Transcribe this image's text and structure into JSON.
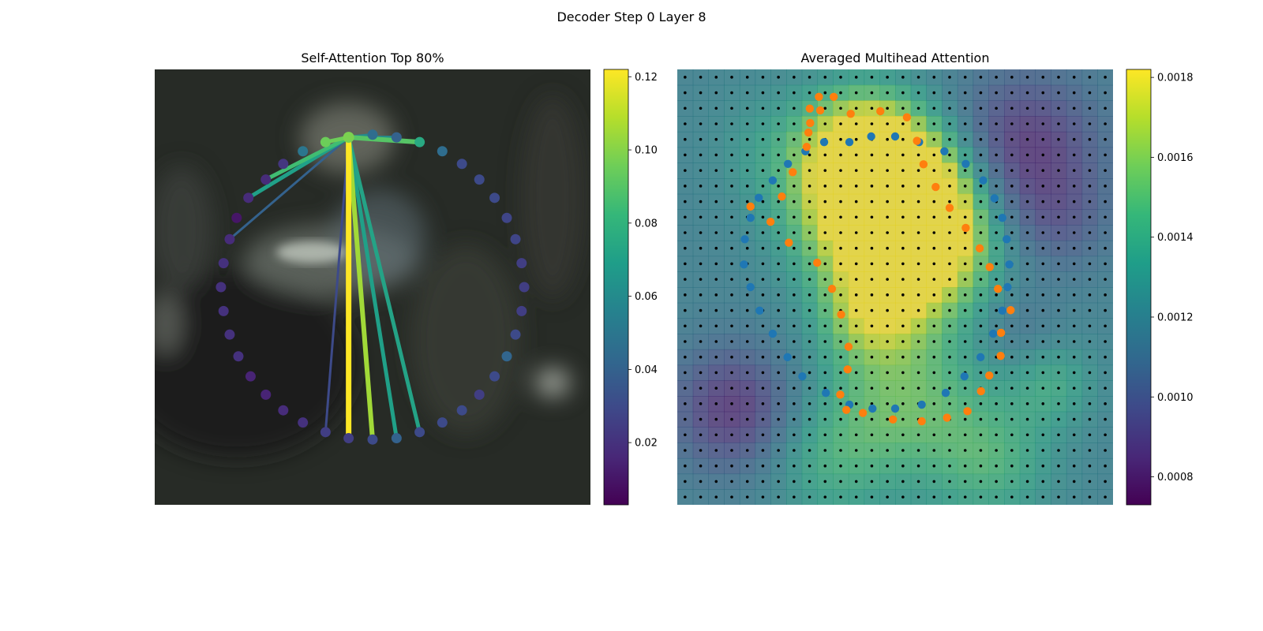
{
  "figure": {
    "suptitle": "Decoder Step 0 Layer 8"
  },
  "colors": {
    "viridis_stops": [
      "#440154",
      "#482878",
      "#3e4989",
      "#31688e",
      "#26828e",
      "#1f9e89",
      "#35b779",
      "#6ece58",
      "#b5de2b",
      "#fde725"
    ],
    "encoder_points": "#1f77b4",
    "decoder_points": "#ff7f0e",
    "grid_points": "#000000"
  },
  "chart_data": [
    {
      "panel": "left",
      "type": "scatter",
      "title": "Self-Attention Top 80%",
      "description_of_background": "blurred grayscale-green photo of a hand",
      "colorbar": {
        "min": 0.003,
        "max": 0.122,
        "ticks": [
          0.02,
          0.04,
          0.06,
          0.08,
          0.1,
          0.12
        ],
        "tick_labels": [
          "0.02",
          "0.04",
          "0.06",
          "0.08",
          "0.10",
          "0.12"
        ]
      },
      "query_index": 0,
      "points": [
        {
          "x": 0.445,
          "y": 0.156,
          "v": 0.098
        },
        {
          "x": 0.5,
          "y": 0.15,
          "v": 0.045
        },
        {
          "x": 0.555,
          "y": 0.156,
          "v": 0.04
        },
        {
          "x": 0.608,
          "y": 0.167,
          "v": 0.075
        },
        {
          "x": 0.66,
          "y": 0.188,
          "v": 0.045
        },
        {
          "x": 0.705,
          "y": 0.217,
          "v": 0.03
        },
        {
          "x": 0.745,
          "y": 0.253,
          "v": 0.03
        },
        {
          "x": 0.78,
          "y": 0.295,
          "v": 0.03
        },
        {
          "x": 0.808,
          "y": 0.341,
          "v": 0.028
        },
        {
          "x": 0.828,
          "y": 0.39,
          "v": 0.028
        },
        {
          "x": 0.842,
          "y": 0.445,
          "v": 0.025
        },
        {
          "x": 0.848,
          "y": 0.5,
          "v": 0.025
        },
        {
          "x": 0.842,
          "y": 0.555,
          "v": 0.025
        },
        {
          "x": 0.828,
          "y": 0.609,
          "v": 0.03
        },
        {
          "x": 0.808,
          "y": 0.659,
          "v": 0.042
        },
        {
          "x": 0.78,
          "y": 0.705,
          "v": 0.03
        },
        {
          "x": 0.745,
          "y": 0.747,
          "v": 0.025
        },
        {
          "x": 0.705,
          "y": 0.783,
          "v": 0.03
        },
        {
          "x": 0.66,
          "y": 0.811,
          "v": 0.03
        },
        {
          "x": 0.608,
          "y": 0.833,
          "v": 0.03
        },
        {
          "x": 0.555,
          "y": 0.847,
          "v": 0.04
        },
        {
          "x": 0.5,
          "y": 0.85,
          "v": 0.03
        },
        {
          "x": 0.445,
          "y": 0.847,
          "v": 0.025
        },
        {
          "x": 0.392,
          "y": 0.833,
          "v": 0.025
        },
        {
          "x": 0.34,
          "y": 0.811,
          "v": 0.02
        },
        {
          "x": 0.295,
          "y": 0.783,
          "v": 0.018
        },
        {
          "x": 0.255,
          "y": 0.747,
          "v": 0.015
        },
        {
          "x": 0.22,
          "y": 0.705,
          "v": 0.015
        },
        {
          "x": 0.192,
          "y": 0.659,
          "v": 0.02
        },
        {
          "x": 0.172,
          "y": 0.609,
          "v": 0.02
        },
        {
          "x": 0.158,
          "y": 0.555,
          "v": 0.02
        },
        {
          "x": 0.152,
          "y": 0.5,
          "v": 0.02
        },
        {
          "x": 0.158,
          "y": 0.445,
          "v": 0.02
        },
        {
          "x": 0.172,
          "y": 0.39,
          "v": 0.018
        },
        {
          "x": 0.188,
          "y": 0.341,
          "v": 0.01
        },
        {
          "x": 0.215,
          "y": 0.295,
          "v": 0.018
        },
        {
          "x": 0.255,
          "y": 0.253,
          "v": 0.018
        },
        {
          "x": 0.295,
          "y": 0.217,
          "v": 0.022
        },
        {
          "x": 0.34,
          "y": 0.188,
          "v": 0.05
        },
        {
          "x": 0.392,
          "y": 0.167,
          "v": 0.095
        }
      ],
      "edges": [
        {
          "to": 22,
          "v": 0.122,
          "w": 7
        },
        {
          "to": 21,
          "v": 0.105,
          "w": 6
        },
        {
          "to": 20,
          "v": 0.07,
          "w": 5
        },
        {
          "to": 19,
          "v": 0.072,
          "w": 5
        },
        {
          "to": 3,
          "v": 0.09,
          "w": 6
        },
        {
          "to": 1,
          "v": 0.06,
          "w": 4
        },
        {
          "to": 2,
          "v": 0.06,
          "w": 4
        },
        {
          "to": 39,
          "v": 0.095,
          "w": 5
        },
        {
          "to": 35,
          "v": 0.07,
          "w": 5
        },
        {
          "to": 36,
          "v": 0.085,
          "w": 5
        },
        {
          "to": 33,
          "v": 0.04,
          "w": 3
        },
        {
          "to": 23,
          "v": 0.03,
          "w": 3
        }
      ]
    },
    {
      "panel": "right",
      "type": "heatmap",
      "title": "Averaged Multihead Attention",
      "colorbar": {
        "min": 0.00073,
        "max": 0.00182,
        "ticks": [
          0.0008,
          0.001,
          0.0012,
          0.0014,
          0.0016,
          0.0018
        ],
        "tick_labels": [
          "0.0008",
          "0.0010",
          "0.0012",
          "0.0014",
          "0.0016",
          "0.0018"
        ]
      },
      "grid_size": 28,
      "hotspots": [
        {
          "x": 0.45,
          "y": 0.32,
          "r": 0.12,
          "a": 0.00085
        },
        {
          "x": 0.43,
          "y": 0.18,
          "r": 0.09,
          "a": 0.00065
        },
        {
          "x": 0.55,
          "y": 0.3,
          "r": 0.1,
          "a": 0.0006
        },
        {
          "x": 0.58,
          "y": 0.43,
          "r": 0.1,
          "a": 0.0005
        },
        {
          "x": 0.45,
          "y": 0.55,
          "r": 0.08,
          "a": 0.00045
        },
        {
          "x": 0.52,
          "y": 0.75,
          "r": 0.13,
          "a": 0.00035
        },
        {
          "x": 0.72,
          "y": 0.9,
          "r": 0.1,
          "a": 0.00025
        },
        {
          "x": 0.35,
          "y": 0.9,
          "r": 0.1,
          "a": 0.0002
        },
        {
          "x": 0.86,
          "y": 0.72,
          "r": 0.07,
          "a": 0.0002
        },
        {
          "x": 0.22,
          "y": 0.18,
          "r": 0.1,
          "a": 0.00012
        },
        {
          "x": 0.8,
          "y": 0.18,
          "r": 0.12,
          "a": -0.00035
        },
        {
          "x": 0.13,
          "y": 0.78,
          "r": 0.1,
          "a": -0.00035
        },
        {
          "x": 0.88,
          "y": 0.35,
          "r": 0.08,
          "a": -0.00015
        },
        {
          "x": 0.78,
          "y": 0.6,
          "r": 0.07,
          "a": -0.0001
        }
      ],
      "base_value": 0.00118,
      "encoder_points": [
        {
          "x": 0.395,
          "y": 0.167
        },
        {
          "x": 0.445,
          "y": 0.154
        },
        {
          "x": 0.5,
          "y": 0.154
        },
        {
          "x": 0.555,
          "y": 0.167
        },
        {
          "x": 0.613,
          "y": 0.188
        },
        {
          "x": 0.662,
          "y": 0.217
        },
        {
          "x": 0.702,
          "y": 0.255
        },
        {
          "x": 0.728,
          "y": 0.296
        },
        {
          "x": 0.746,
          "y": 0.341
        },
        {
          "x": 0.756,
          "y": 0.39
        },
        {
          "x": 0.762,
          "y": 0.448
        },
        {
          "x": 0.758,
          "y": 0.5
        },
        {
          "x": 0.746,
          "y": 0.554
        },
        {
          "x": 0.725,
          "y": 0.607
        },
        {
          "x": 0.696,
          "y": 0.661
        },
        {
          "x": 0.659,
          "y": 0.705
        },
        {
          "x": 0.616,
          "y": 0.743
        },
        {
          "x": 0.561,
          "y": 0.77
        },
        {
          "x": 0.5,
          "y": 0.779
        },
        {
          "x": 0.448,
          "y": 0.779
        },
        {
          "x": 0.395,
          "y": 0.77
        },
        {
          "x": 0.341,
          "y": 0.743
        },
        {
          "x": 0.287,
          "y": 0.705
        },
        {
          "x": 0.253,
          "y": 0.661
        },
        {
          "x": 0.219,
          "y": 0.607
        },
        {
          "x": 0.189,
          "y": 0.554
        },
        {
          "x": 0.168,
          "y": 0.5
        },
        {
          "x": 0.153,
          "y": 0.448
        },
        {
          "x": 0.155,
          "y": 0.39
        },
        {
          "x": 0.168,
          "y": 0.341
        },
        {
          "x": 0.187,
          "y": 0.295
        },
        {
          "x": 0.219,
          "y": 0.255
        },
        {
          "x": 0.254,
          "y": 0.217
        },
        {
          "x": 0.294,
          "y": 0.188
        },
        {
          "x": 0.337,
          "y": 0.167
        }
      ],
      "decoder_points": [
        {
          "x": 0.398,
          "y": 0.102
        },
        {
          "x": 0.466,
          "y": 0.096
        },
        {
          "x": 0.527,
          "y": 0.11
        },
        {
          "x": 0.55,
          "y": 0.164
        },
        {
          "x": 0.565,
          "y": 0.218
        },
        {
          "x": 0.593,
          "y": 0.27
        },
        {
          "x": 0.625,
          "y": 0.318
        },
        {
          "x": 0.662,
          "y": 0.364
        },
        {
          "x": 0.694,
          "y": 0.411
        },
        {
          "x": 0.717,
          "y": 0.454
        },
        {
          "x": 0.736,
          "y": 0.504
        },
        {
          "x": 0.765,
          "y": 0.553
        },
        {
          "x": 0.743,
          "y": 0.605
        },
        {
          "x": 0.742,
          "y": 0.658
        },
        {
          "x": 0.716,
          "y": 0.703
        },
        {
          "x": 0.697,
          "y": 0.739
        },
        {
          "x": 0.666,
          "y": 0.785
        },
        {
          "x": 0.619,
          "y": 0.8
        },
        {
          "x": 0.561,
          "y": 0.808
        },
        {
          "x": 0.495,
          "y": 0.804
        },
        {
          "x": 0.426,
          "y": 0.789
        },
        {
          "x": 0.388,
          "y": 0.782
        },
        {
          "x": 0.374,
          "y": 0.747
        },
        {
          "x": 0.391,
          "y": 0.689
        },
        {
          "x": 0.393,
          "y": 0.637
        },
        {
          "x": 0.376,
          "y": 0.563
        },
        {
          "x": 0.355,
          "y": 0.504
        },
        {
          "x": 0.321,
          "y": 0.444
        },
        {
          "x": 0.256,
          "y": 0.398
        },
        {
          "x": 0.214,
          "y": 0.35
        },
        {
          "x": 0.168,
          "y": 0.315
        },
        {
          "x": 0.24,
          "y": 0.292
        },
        {
          "x": 0.265,
          "y": 0.236
        },
        {
          "x": 0.297,
          "y": 0.178
        },
        {
          "x": 0.305,
          "y": 0.123
        },
        {
          "x": 0.328,
          "y": 0.094
        },
        {
          "x": 0.359,
          "y": 0.063
        },
        {
          "x": 0.325,
          "y": 0.063
        },
        {
          "x": 0.304,
          "y": 0.09
        },
        {
          "x": 0.301,
          "y": 0.145
        }
      ]
    }
  ]
}
